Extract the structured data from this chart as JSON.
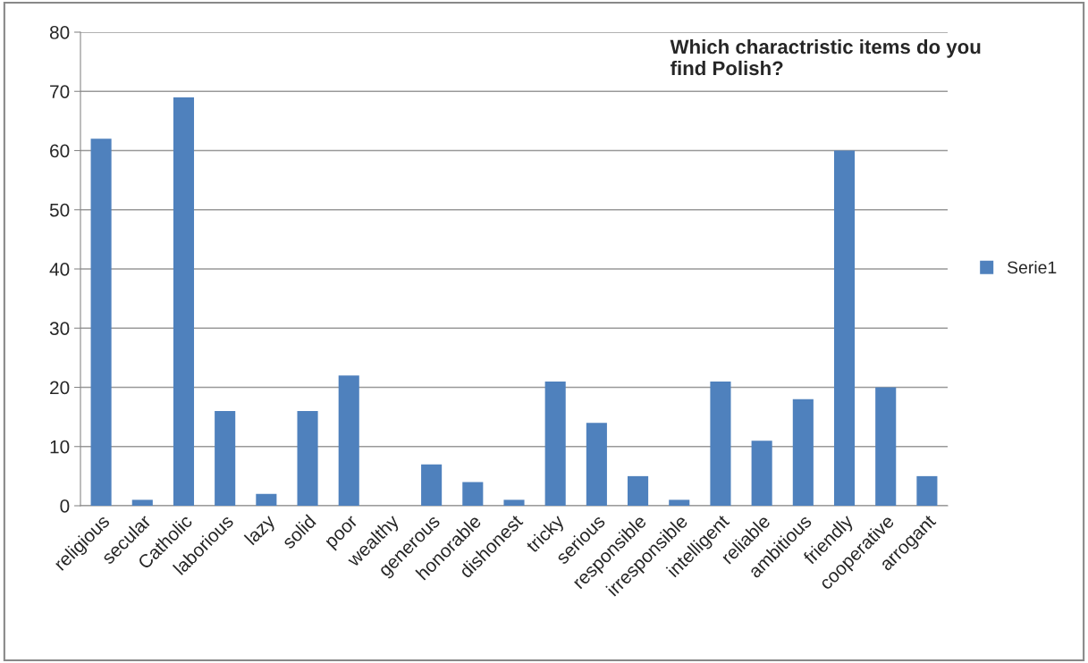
{
  "chart_data": {
    "type": "bar",
    "title": "Which charactristic items do you\nfind Polish?",
    "categories": [
      "religious",
      "secular",
      "Catholic",
      "laborious",
      "lazy",
      "solid",
      "poor",
      "wealthy",
      "generous",
      "honorable",
      "dishonest",
      "tricky",
      "serious",
      "responsible",
      "irresponsible",
      "intelligent",
      "reliable",
      "ambitious",
      "friendly",
      "cooperative",
      "arrogant"
    ],
    "series": [
      {
        "name": "Serie1",
        "color": "#4f81bd",
        "values": [
          62,
          1,
          69,
          16,
          2,
          16,
          22,
          0,
          7,
          4,
          1,
          21,
          14,
          5,
          1,
          21,
          11,
          18,
          60,
          20,
          5
        ]
      }
    ],
    "ylim": [
      0,
      80
    ],
    "yticks": [
      0,
      10,
      20,
      30,
      40,
      50,
      60,
      70,
      80
    ],
    "grid": "y",
    "legend": "right"
  }
}
